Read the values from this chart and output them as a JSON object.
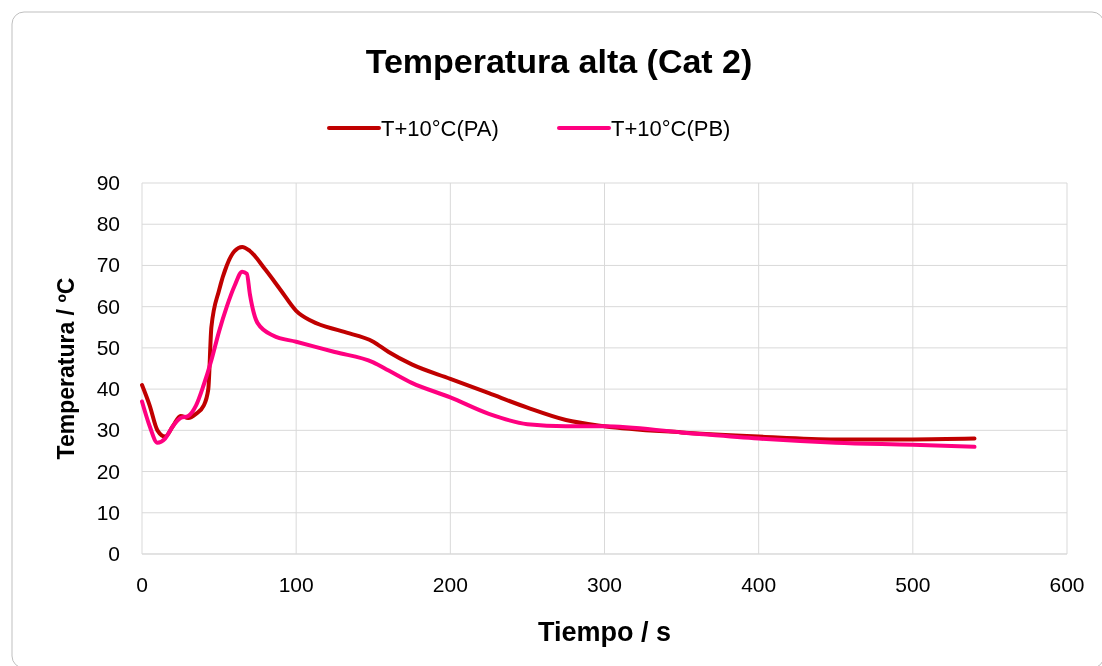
{
  "chart_data": {
    "type": "line",
    "title": "Temperatura alta (Cat 2)",
    "xlabel": "Tiempo / s",
    "ylabel": "Temperatura / ºC",
    "xlim": [
      0,
      600
    ],
    "xticks": [
      0,
      100,
      200,
      300,
      400,
      500,
      600
    ],
    "ylim": [
      0,
      90
    ],
    "yticks": [
      0,
      10,
      20,
      30,
      40,
      50,
      60,
      70,
      80,
      90
    ],
    "grid": true,
    "legend": "top",
    "marker": "none",
    "line_style": "solid",
    "series": [
      {
        "name": "T+10°C(PA)",
        "color": "#c00000",
        "x": [
          0,
          5,
          10,
          15,
          20,
          25,
          30,
          35,
          40,
          43,
          45,
          50,
          55,
          60,
          65,
          70,
          80,
          90,
          100,
          110,
          130,
          150,
          160,
          175,
          200,
          225,
          250,
          275,
          300,
          350,
          400,
          450,
          500,
          540
        ],
        "values": [
          41,
          36,
          30,
          28.5,
          31,
          33.5,
          33,
          34,
          36,
          40,
          55,
          64,
          70,
          73.5,
          74.5,
          73.5,
          69,
          64,
          59,
          56.5,
          54,
          51.5,
          49,
          46,
          42.5,
          39,
          35.5,
          32.5,
          31,
          29.5,
          28.5,
          27.8,
          27.8,
          28
        ]
      },
      {
        "name": "T+10°C(PB)",
        "color": "#ff0080",
        "x": [
          0,
          5,
          10,
          15,
          20,
          25,
          30,
          35,
          40,
          45,
          50,
          55,
          60,
          65,
          68,
          70,
          75,
          85,
          100,
          125,
          150,
          160,
          175,
          200,
          225,
          250,
          275,
          300,
          350,
          400,
          450,
          500,
          540
        ],
        "values": [
          37,
          31,
          27,
          28,
          31,
          33,
          33.5,
          36,
          41,
          47,
          54,
          60,
          65,
          68.5,
          68,
          63,
          56,
          53,
          51.5,
          49,
          46.5,
          44.5,
          41.5,
          38,
          34,
          31.5,
          31,
          31,
          29.5,
          28,
          27,
          26.5,
          26
        ]
      }
    ]
  }
}
